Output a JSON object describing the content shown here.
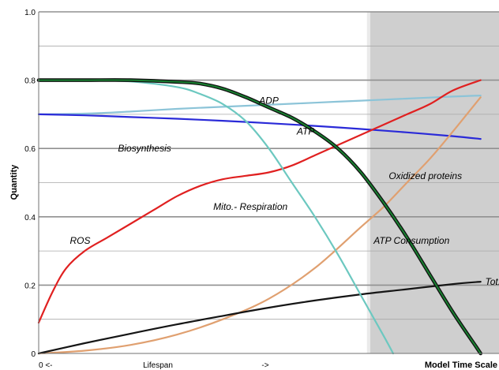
{
  "chart_data": {
    "type": "line",
    "xlabel": "Model Time Scale",
    "ylabel": "Quantity",
    "ylim": [
      0,
      1.0
    ],
    "xlim": [
      0,
      1.0
    ],
    "yticks": [
      "0",
      "0.2",
      "0.4",
      "0.6",
      "0.8",
      "1.0"
    ],
    "x_axis_text": {
      "left": "0 <-",
      "middle": "Lifespan",
      "right": "->"
    },
    "grid": "horizontal",
    "shaded_region": {
      "x_start": 0.72,
      "x_end": 1.0,
      "color": "#cfcfcf"
    },
    "series": [
      {
        "key": "adp",
        "color": "#8cc4d8",
        "points": [
          [
            0,
            0.7
          ],
          [
            0.1,
            0.702
          ],
          [
            0.2,
            0.708
          ],
          [
            0.3,
            0.716
          ],
          [
            0.4,
            0.722
          ],
          [
            0.5,
            0.728
          ],
          [
            0.6,
            0.734
          ],
          [
            0.7,
            0.74
          ],
          [
            0.8,
            0.746
          ],
          [
            0.9,
            0.752
          ],
          [
            0.96,
            0.755
          ]
        ]
      },
      {
        "key": "atp",
        "color": "#2a2ad8",
        "points": [
          [
            0,
            0.7
          ],
          [
            0.1,
            0.697
          ],
          [
            0.2,
            0.692
          ],
          [
            0.3,
            0.687
          ],
          [
            0.4,
            0.681
          ],
          [
            0.5,
            0.674
          ],
          [
            0.6,
            0.666
          ],
          [
            0.7,
            0.657
          ],
          [
            0.8,
            0.647
          ],
          [
            0.9,
            0.636
          ],
          [
            0.96,
            0.628
          ]
        ]
      },
      {
        "key": "ros",
        "color": "#e02020",
        "points": [
          [
            0,
            0.09
          ],
          [
            0.03,
            0.18
          ],
          [
            0.06,
            0.25
          ],
          [
            0.1,
            0.3
          ],
          [
            0.15,
            0.34
          ],
          [
            0.2,
            0.38
          ],
          [
            0.25,
            0.42
          ],
          [
            0.3,
            0.46
          ],
          [
            0.35,
            0.49
          ],
          [
            0.4,
            0.51
          ],
          [
            0.45,
            0.52
          ],
          [
            0.5,
            0.53
          ],
          [
            0.55,
            0.55
          ],
          [
            0.6,
            0.58
          ],
          [
            0.65,
            0.61
          ],
          [
            0.7,
            0.64
          ],
          [
            0.75,
            0.67
          ],
          [
            0.8,
            0.7
          ],
          [
            0.85,
            0.73
          ],
          [
            0.9,
            0.77
          ],
          [
            0.96,
            0.8
          ]
        ]
      },
      {
        "key": "oxidized_proteins",
        "color": "#e0a070",
        "points": [
          [
            0,
            0
          ],
          [
            0.1,
            0.008
          ],
          [
            0.2,
            0.025
          ],
          [
            0.3,
            0.055
          ],
          [
            0.4,
            0.1
          ],
          [
            0.5,
            0.16
          ],
          [
            0.6,
            0.25
          ],
          [
            0.7,
            0.37
          ],
          [
            0.75,
            0.43
          ],
          [
            0.8,
            0.5
          ],
          [
            0.85,
            0.57
          ],
          [
            0.9,
            0.65
          ],
          [
            0.96,
            0.75
          ]
        ]
      },
      {
        "key": "tot_energy_turnover",
        "color": "#151515",
        "points": [
          [
            0,
            0
          ],
          [
            0.1,
            0.03
          ],
          [
            0.2,
            0.058
          ],
          [
            0.3,
            0.085
          ],
          [
            0.4,
            0.11
          ],
          [
            0.5,
            0.134
          ],
          [
            0.6,
            0.155
          ],
          [
            0.7,
            0.173
          ],
          [
            0.8,
            0.188
          ],
          [
            0.9,
            0.203
          ],
          [
            0.96,
            0.21
          ]
        ]
      },
      {
        "key": "biosynthesis",
        "color": "#6cc8c0",
        "points": [
          [
            0,
            0.8
          ],
          [
            0.1,
            0.8
          ],
          [
            0.2,
            0.796
          ],
          [
            0.3,
            0.78
          ],
          [
            0.35,
            0.76
          ],
          [
            0.4,
            0.73
          ],
          [
            0.45,
            0.68
          ],
          [
            0.5,
            0.6
          ],
          [
            0.55,
            0.5
          ],
          [
            0.6,
            0.4
          ],
          [
            0.65,
            0.29
          ],
          [
            0.7,
            0.17
          ],
          [
            0.75,
            0.05
          ],
          [
            0.77,
            0
          ]
        ]
      },
      {
        "key": "mito_respiration",
        "color": "#188030",
        "points": [
          [
            0,
            0.8
          ],
          [
            0.1,
            0.8
          ],
          [
            0.2,
            0.8
          ],
          [
            0.3,
            0.795
          ],
          [
            0.35,
            0.79
          ],
          [
            0.4,
            0.775
          ],
          [
            0.45,
            0.75
          ],
          [
            0.5,
            0.72
          ],
          [
            0.55,
            0.69
          ],
          [
            0.6,
            0.65
          ],
          [
            0.65,
            0.6
          ],
          [
            0.7,
            0.53
          ],
          [
            0.75,
            0.44
          ],
          [
            0.8,
            0.34
          ],
          [
            0.85,
            0.23
          ],
          [
            0.9,
            0.12
          ],
          [
            0.95,
            0.02
          ],
          [
            0.96,
            0
          ]
        ]
      }
    ],
    "annotations": [
      {
        "key": "adp",
        "text": "ADP",
        "x": 0.5,
        "y": 0.74
      },
      {
        "key": "atp",
        "text": "ATP",
        "x": 0.58,
        "y": 0.65
      },
      {
        "key": "biosynthesis",
        "text": "Biosynthesis",
        "x": 0.23,
        "y": 0.6
      },
      {
        "key": "oxidized_proteins",
        "text": "Oxidized proteins",
        "x": 0.84,
        "y": 0.52
      },
      {
        "key": "mito_respiration",
        "text": "Mito.- Respiration",
        "x": 0.46,
        "y": 0.43
      },
      {
        "key": "ros",
        "text": "ROS",
        "x": 0.09,
        "y": 0.33
      },
      {
        "key": "atp_consumption",
        "text": "ATP Consumption",
        "x": 0.81,
        "y": 0.33
      },
      {
        "key": "tot_energy_turnover",
        "text": "Tot. Energy Turnover",
        "x": 0.97,
        "y": 0.21
      }
    ]
  }
}
